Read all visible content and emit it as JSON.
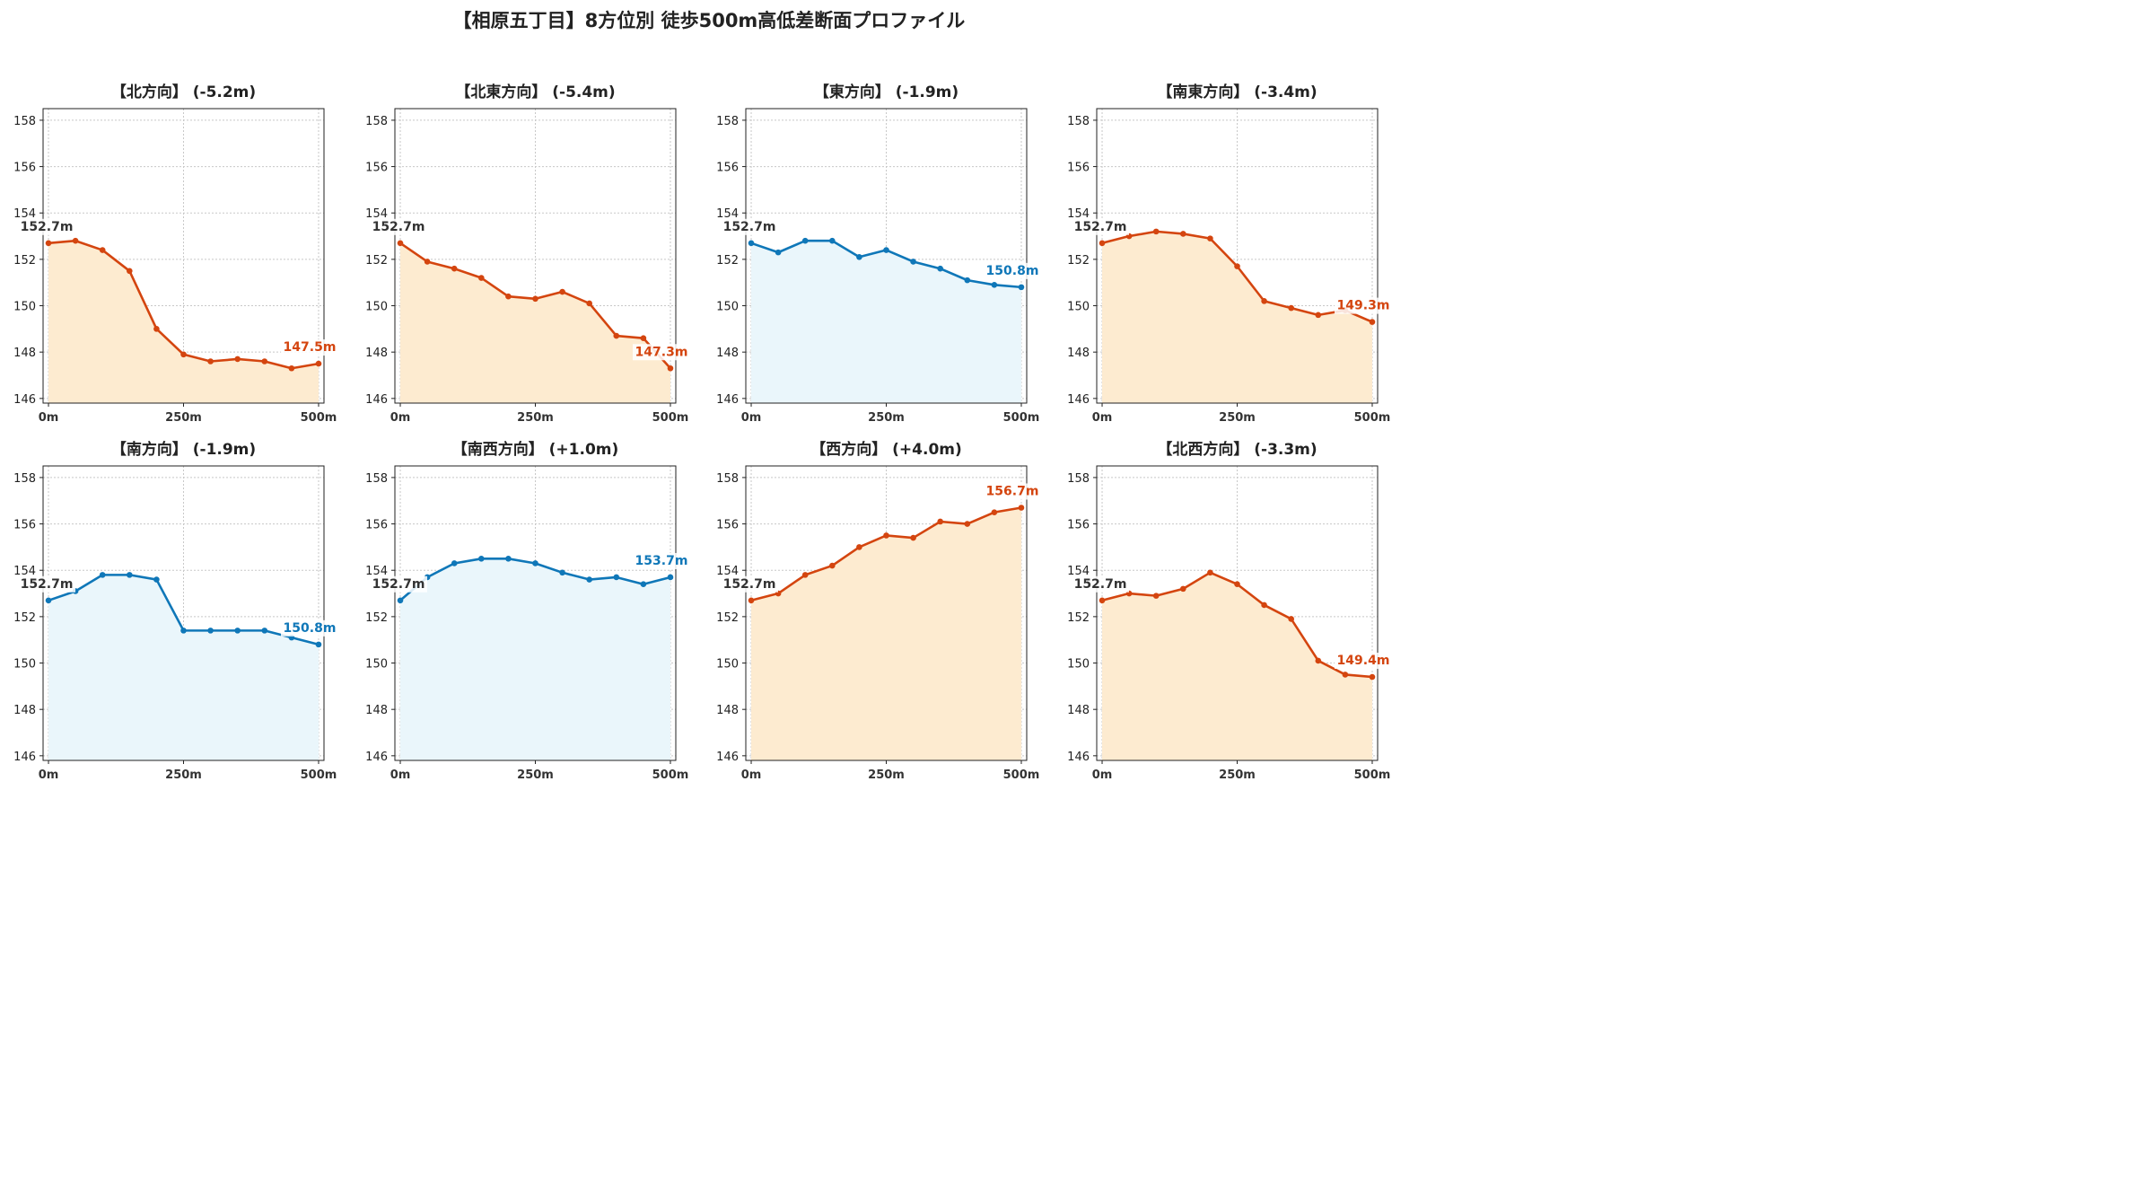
{
  "title": "【相原五丁目】8方位別 徒歩500m高低差断面プロファイル",
  "colors": {
    "down_line": "#d4450f",
    "down_fill": "#fdebd0",
    "up_line": "#0f77b8",
    "up_fill": "#eaf6fb",
    "start_label": "#333333"
  },
  "chart_data": [
    {
      "type": "area",
      "title": "【北方向】 (-5.2m)",
      "trend": "down",
      "x": [
        0,
        50,
        100,
        150,
        200,
        250,
        300,
        350,
        400,
        450,
        500
      ],
      "y": [
        152.7,
        152.8,
        152.4,
        151.5,
        149.0,
        147.9,
        147.6,
        147.7,
        147.6,
        147.3,
        147.5
      ],
      "start_label": "152.7m",
      "end_label": "147.5m"
    },
    {
      "type": "area",
      "title": "【北東方向】 (-5.4m)",
      "trend": "down",
      "x": [
        0,
        50,
        100,
        150,
        200,
        250,
        300,
        350,
        400,
        450,
        500
      ],
      "y": [
        152.7,
        151.9,
        151.6,
        151.2,
        150.4,
        150.3,
        150.6,
        150.1,
        148.7,
        148.6,
        147.3
      ],
      "start_label": "152.7m",
      "end_label": "147.3m"
    },
    {
      "type": "area",
      "title": "【東方向】 (-1.9m)",
      "trend": "up",
      "x": [
        0,
        50,
        100,
        150,
        200,
        250,
        300,
        350,
        400,
        450,
        500
      ],
      "y": [
        152.7,
        152.3,
        152.8,
        152.8,
        152.1,
        152.4,
        151.9,
        151.6,
        151.1,
        150.9,
        150.8
      ],
      "start_label": "152.7m",
      "end_label": "150.8m"
    },
    {
      "type": "area",
      "title": "【南東方向】 (-3.4m)",
      "trend": "down",
      "x": [
        0,
        50,
        100,
        150,
        200,
        250,
        300,
        350,
        400,
        450,
        500
      ],
      "y": [
        152.7,
        153.0,
        153.2,
        153.1,
        152.9,
        151.7,
        150.2,
        149.9,
        149.6,
        149.8,
        149.3
      ],
      "start_label": "152.7m",
      "end_label": "149.3m"
    },
    {
      "type": "area",
      "title": "【南方向】 (-1.9m)",
      "trend": "up",
      "x": [
        0,
        50,
        100,
        150,
        200,
        250,
        300,
        350,
        400,
        450,
        500
      ],
      "y": [
        152.7,
        153.1,
        153.8,
        153.8,
        153.6,
        151.4,
        151.4,
        151.4,
        151.4,
        151.1,
        150.8
      ],
      "start_label": "152.7m",
      "end_label": "150.8m"
    },
    {
      "type": "area",
      "title": "【南西方向】 (+1.0m)",
      "trend": "up",
      "x": [
        0,
        50,
        100,
        150,
        200,
        250,
        300,
        350,
        400,
        450,
        500
      ],
      "y": [
        152.7,
        153.7,
        154.3,
        154.5,
        154.5,
        154.3,
        153.9,
        153.6,
        153.7,
        153.4,
        153.7
      ],
      "start_label": "152.7m",
      "end_label": "153.7m"
    },
    {
      "type": "area",
      "title": "【西方向】 (+4.0m)",
      "trend": "down",
      "x": [
        0,
        50,
        100,
        150,
        200,
        250,
        300,
        350,
        400,
        450,
        500
      ],
      "y": [
        152.7,
        153.0,
        153.8,
        154.2,
        155.0,
        155.5,
        155.4,
        156.1,
        156.0,
        156.5,
        156.7
      ],
      "start_label": "152.7m",
      "end_label": "156.7m"
    },
    {
      "type": "area",
      "title": "【北西方向】 (-3.3m)",
      "trend": "down",
      "x": [
        0,
        50,
        100,
        150,
        200,
        250,
        300,
        350,
        400,
        450,
        500
      ],
      "y": [
        152.7,
        153.0,
        152.9,
        153.2,
        153.9,
        153.4,
        152.5,
        151.9,
        150.1,
        149.5,
        149.4
      ],
      "start_label": "152.7m",
      "end_label": "149.4m"
    }
  ],
  "axes": {
    "ylim": [
      145.8,
      158.5
    ],
    "yticks": [
      146,
      148,
      150,
      152,
      154,
      156,
      158
    ],
    "xlim": [
      -10,
      510
    ],
    "xticks": [
      0,
      250,
      500
    ],
    "xtick_labels": [
      "0m",
      "250m",
      "500m"
    ],
    "grid": true
  }
}
